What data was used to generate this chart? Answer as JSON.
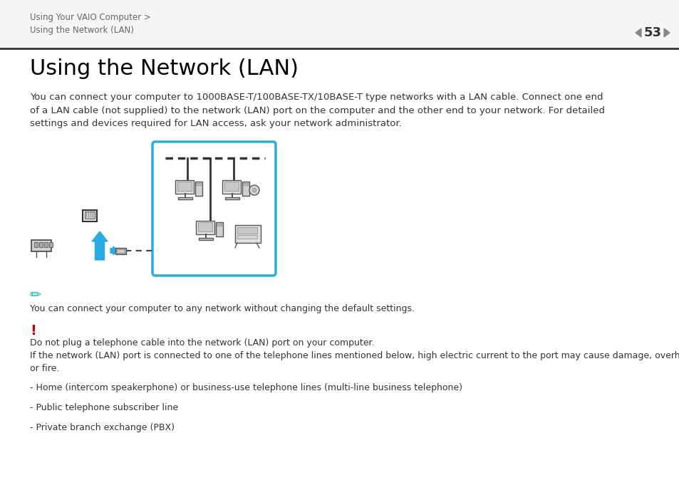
{
  "bg_color": "#ffffff",
  "header_bg": "#f0f0f0",
  "header_line_color": "#333333",
  "header_text1": "Using Your VAIO Computer >",
  "header_text2": "Using the Network (LAN)",
  "header_page": "53",
  "header_arrow_color": "#808080",
  "title": "Using the Network (LAN)",
  "body_text": "You can connect your computer to 1000BASE-T/100BASE-TX/10BASE-T type networks with a LAN cable. Connect one end\nof a LAN cable (not supplied) to the network (LAN) port on the computer and the other end to your network. For detailed\nsettings and devices required for LAN access, ask your network administrator.",
  "note_icon_color": "#00b0b0",
  "note_text": "You can connect your computer to any network without changing the default settings.",
  "warning_icon_color": "#cc0000",
  "warning_text1": "Do not plug a telephone cable into the network (LAN) port on your computer.",
  "warning_text2": "If the network (LAN) port is connected to one of the telephone lines mentioned below, high electric current to the port may cause damage, overheating,\nor fire.",
  "bullet1": "- Home (intercom speakerphone) or business-use telephone lines (multi-line business telephone)",
  "bullet2": "- Public telephone subscriber line",
  "bullet3": "- Private branch exchange (PBX)",
  "box_color": "#29abe2",
  "diagram_line_color": "#333333"
}
